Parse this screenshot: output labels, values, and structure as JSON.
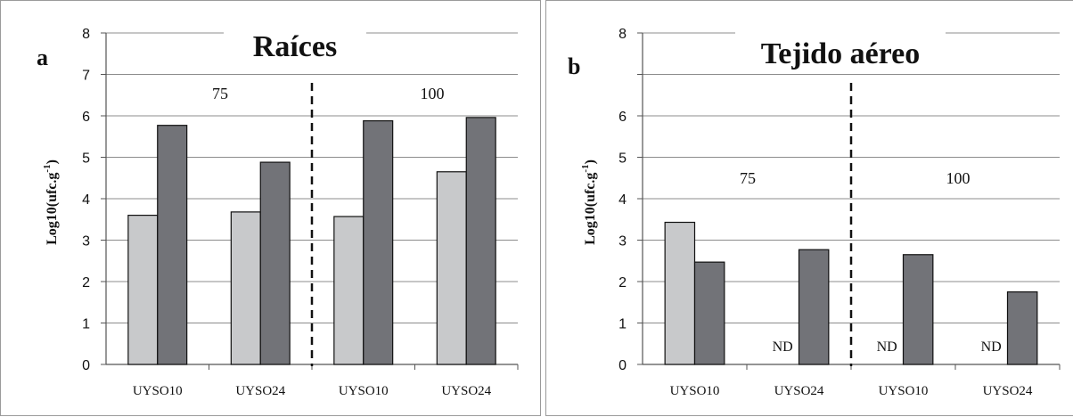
{
  "chart_data": [
    {
      "type": "bar",
      "panel_letter": "a",
      "title": "Raíces",
      "ylabel": "Log10(ufc.g",
      "ylabel_sup": "-1",
      "ylabel_close": ")",
      "ylim": [
        0,
        8
      ],
      "yticks": [
        "0",
        "1",
        "2",
        "3",
        "4",
        "5",
        "6",
        "7",
        "8"
      ],
      "categories": [
        "UYSO10",
        "UYSO24",
        "UYSO10",
        "UYSO24"
      ],
      "group_labels": [
        "75",
        "100"
      ],
      "series": [
        {
          "values": [
            3.6,
            3.68,
            3.57,
            4.65
          ],
          "color": "#c8c9cb"
        },
        {
          "values": [
            5.77,
            4.88,
            5.88,
            5.96
          ],
          "color": "#727378"
        }
      ],
      "nd_labels": [
        "",
        "",
        "",
        ""
      ],
      "grid": true
    },
    {
      "type": "bar",
      "panel_letter": "b",
      "title": "Tejido aéreo",
      "ylabel": "Log10(ufc.g",
      "ylabel_sup": "-1",
      "ylabel_close": ")",
      "ylim": [
        0,
        8
      ],
      "yticks": [
        "0",
        "1",
        "2",
        "3",
        "4",
        "5",
        "6",
        "",
        "8"
      ],
      "categories": [
        "UYSO10",
        "UYSO24",
        "UYSO10",
        "UYSO24"
      ],
      "group_labels": [
        "75",
        "100"
      ],
      "series": [
        {
          "values": [
            3.43,
            0,
            0,
            0
          ],
          "color": "#c8c9cb"
        },
        {
          "values": [
            2.47,
            2.77,
            2.65,
            1.75
          ],
          "color": "#727378"
        }
      ],
      "nd_labels": [
        "",
        "ND",
        "ND",
        "ND"
      ],
      "grid": true
    }
  ]
}
